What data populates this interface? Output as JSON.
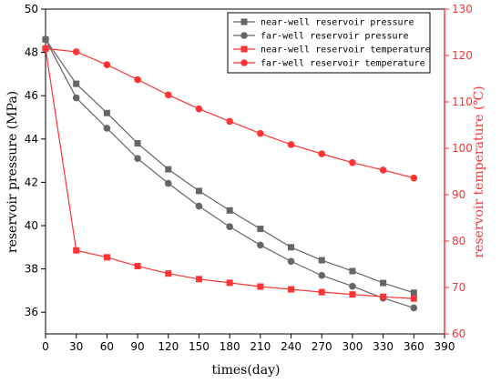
{
  "chart_data": {
    "type": "line",
    "x": [
      0,
      30,
      60,
      90,
      120,
      150,
      180,
      210,
      240,
      270,
      300,
      330,
      360
    ],
    "xlabel": "times(day)",
    "xlim": [
      0,
      390
    ],
    "xticks": [
      0,
      30,
      60,
      90,
      120,
      150,
      180,
      210,
      240,
      270,
      300,
      330,
      360,
      390
    ],
    "ylabel_left": "reservoir pressure (MPa)",
    "ylim_left": [
      35,
      50
    ],
    "yticks_left": [
      36,
      38,
      40,
      42,
      44,
      46,
      48,
      50
    ],
    "ylabel_right": "reservoir temperature (℃)",
    "ylim_right": [
      60,
      130
    ],
    "yticks_right": [
      60,
      70,
      80,
      90,
      100,
      110,
      120,
      130
    ],
    "legend_position": "top-right",
    "series": [
      {
        "name": "near-well reservoir pressure",
        "axis": "left",
        "color": "#666666",
        "marker": "square",
        "values": [
          48.6,
          46.55,
          45.2,
          43.8,
          42.6,
          41.6,
          40.7,
          39.85,
          39.0,
          38.4,
          37.9,
          37.35,
          36.9
        ]
      },
      {
        "name": "far-well reservoir pressure",
        "axis": "left",
        "color": "#666666",
        "marker": "circle",
        "values": [
          48.6,
          45.9,
          44.5,
          43.1,
          41.95,
          40.9,
          39.95,
          39.1,
          38.35,
          37.7,
          37.2,
          36.65,
          36.2
        ]
      },
      {
        "name": "near-well reservoir temperature",
        "axis": "right",
        "color": "#ff3333",
        "marker": "square",
        "values": [
          121.5,
          78.0,
          76.5,
          74.6,
          73.0,
          71.8,
          71.0,
          70.2,
          69.6,
          69.0,
          68.5,
          68.0,
          67.6
        ]
      },
      {
        "name": "far-well reservoir temperature",
        "axis": "right",
        "color": "#ff3333",
        "marker": "circle",
        "values": [
          121.5,
          120.8,
          118.0,
          114.8,
          111.5,
          108.5,
          105.8,
          103.2,
          100.8,
          98.8,
          96.9,
          95.3,
          93.6
        ]
      }
    ]
  }
}
